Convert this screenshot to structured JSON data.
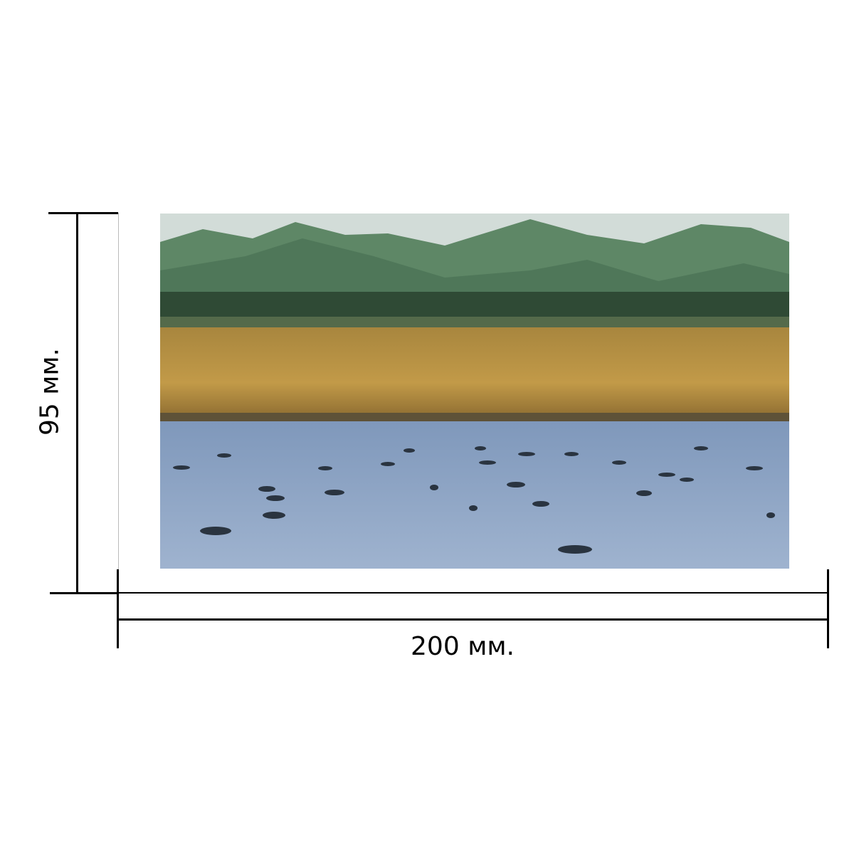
{
  "dimensions": {
    "width_label": "200 мм.",
    "height_label": "95 мм."
  },
  "photo": {
    "subject": "ducks-on-lake-icon",
    "colors": {
      "sky": "#cfd9d6",
      "hills": "#5f8a6a",
      "field": "#b88a3a",
      "water": "#8fa6c4"
    }
  }
}
